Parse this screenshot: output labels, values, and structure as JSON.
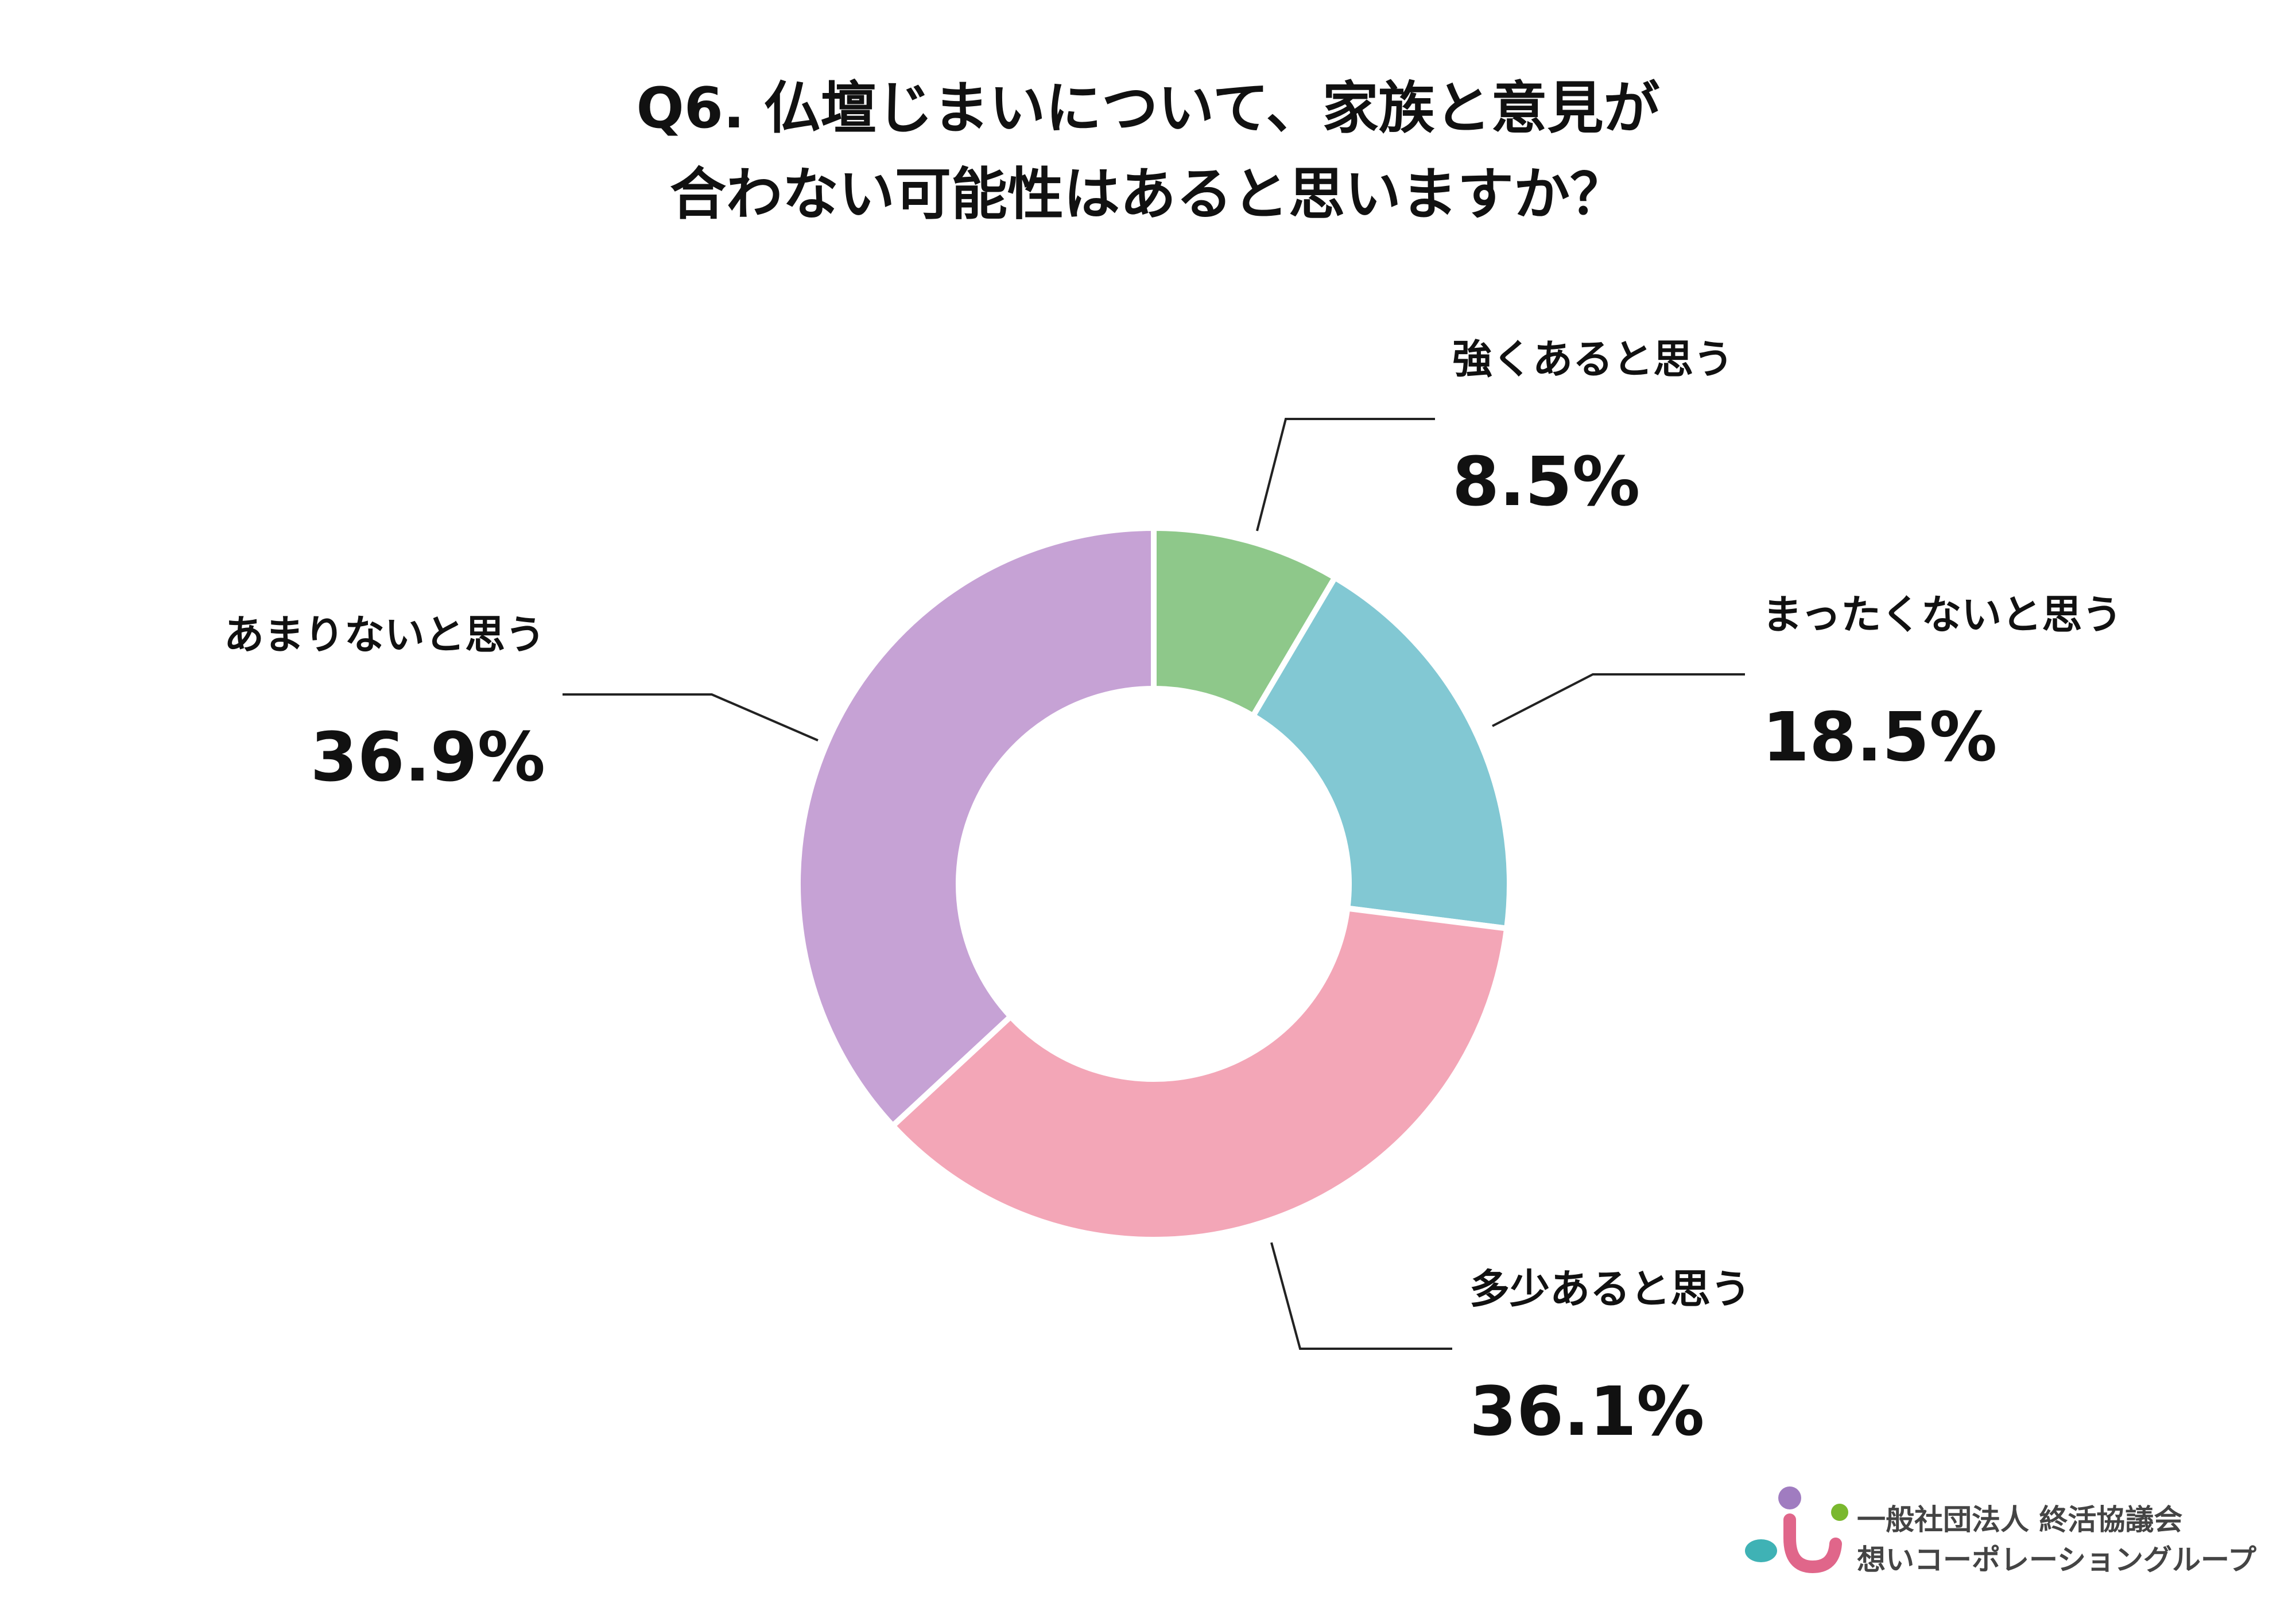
{
  "chart_data": {
    "type": "pie",
    "donut": true,
    "title_lines": [
      "Q6. 仏壇じまいについて、家族と意見が",
      "合わない可能性はあると思いますか？"
    ],
    "slices": [
      {
        "name": "強くあると思う",
        "value": 8.5,
        "label": "8.5%",
        "color": "#8ec88a"
      },
      {
        "name": "まったくないと思う",
        "value": 18.5,
        "label": "18.5%",
        "color": "#82c8d3"
      },
      {
        "name": "多少あると思う",
        "value": 36.1,
        "label": "36.1%",
        "color": "#f3a6b7"
      },
      {
        "name": "あまりないと思う",
        "value": 36.9,
        "label": "36.9%",
        "color": "#c6a2d5"
      }
    ],
    "legend": "none"
  },
  "logo": {
    "line1": "一般社団法人 終活協議会",
    "line2": "想いコーポレーショングループ",
    "colors": {
      "purple": "#a07cc0",
      "green": "#7ab82e",
      "teal": "#3fb2b5",
      "pink": "#e0668a"
    }
  }
}
